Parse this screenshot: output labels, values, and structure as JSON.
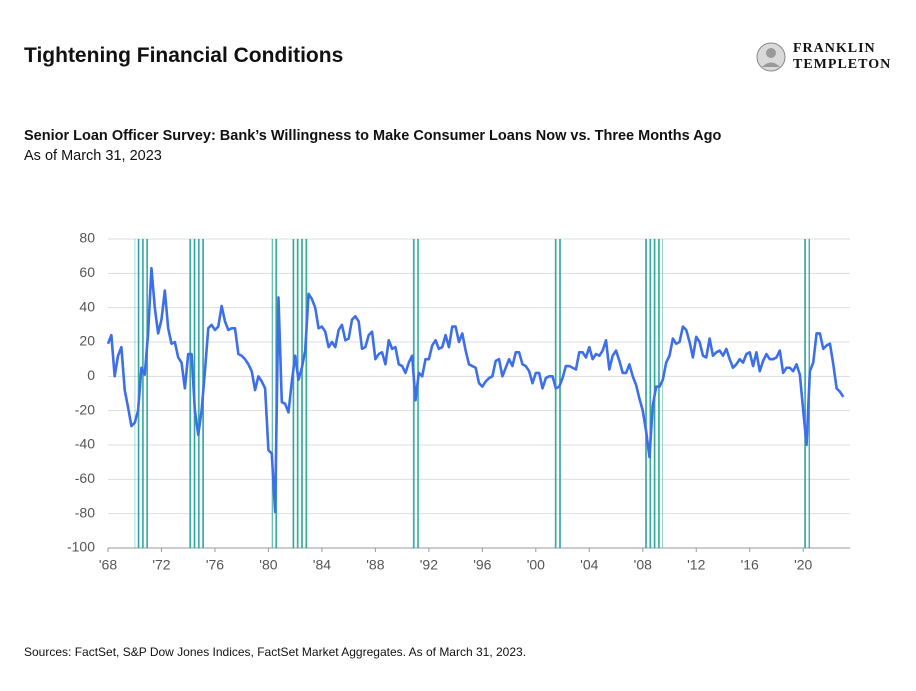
{
  "header": {
    "title": "Tightening Financial Conditions",
    "logo": [
      "FRANKLIN",
      "TEMPLETON"
    ]
  },
  "chart_data": {
    "type": "line",
    "title": "Senior Loan Officer Survey: Bank’s Willingness to Make Consumer Loans Now vs. Three Months Ago",
    "subtitle": "As of March 31, 2023",
    "source": "Sources: FactSet, S&P Dow Jones Indices, FactSet Market Aggregates. As of March 31, 2023.",
    "x": [
      1968,
      1968.25,
      1968.5,
      1968.75,
      1969,
      1969.25,
      1969.5,
      1969.75,
      1970,
      1970.25,
      1970.5,
      1970.75,
      1971,
      1971.25,
      1971.5,
      1971.75,
      1972,
      1972.25,
      1972.5,
      1972.75,
      1973,
      1973.25,
      1973.5,
      1973.75,
      1974,
      1974.25,
      1974.5,
      1974.75,
      1975,
      1975.25,
      1975.5,
      1975.75,
      1976,
      1976.25,
      1976.5,
      1976.75,
      1977,
      1977.25,
      1977.5,
      1977.75,
      1978,
      1978.25,
      1978.5,
      1978.75,
      1979,
      1979.25,
      1979.5,
      1979.75,
      1980,
      1980.25,
      1980.5,
      1980.75,
      1981,
      1981.25,
      1981.5,
      1981.75,
      1982,
      1982.25,
      1982.5,
      1982.75,
      1983,
      1983.25,
      1983.5,
      1983.75,
      1984,
      1984.25,
      1984.5,
      1984.75,
      1985,
      1985.25,
      1985.5,
      1985.75,
      1986,
      1986.25,
      1986.5,
      1986.75,
      1987,
      1987.25,
      1987.5,
      1987.75,
      1988,
      1988.25,
      1988.5,
      1988.75,
      1989,
      1989.25,
      1989.5,
      1989.75,
      1990,
      1990.25,
      1990.5,
      1990.75,
      1991,
      1991.25,
      1991.5,
      1991.75,
      1992,
      1992.25,
      1992.5,
      1992.75,
      1993,
      1993.25,
      1993.5,
      1993.75,
      1994,
      1994.25,
      1994.5,
      1994.75,
      1995,
      1995.25,
      1995.5,
      1995.75,
      1996,
      1996.25,
      1996.5,
      1996.75,
      1997,
      1997.25,
      1997.5,
      1997.75,
      1998,
      1998.25,
      1998.5,
      1998.75,
      1999,
      1999.25,
      1999.5,
      1999.75,
      2000,
      2000.25,
      2000.5,
      2000.75,
      2001,
      2001.25,
      2001.5,
      2001.75,
      2002,
      2002.25,
      2002.5,
      2002.75,
      2003,
      2003.25,
      2003.5,
      2003.75,
      2004,
      2004.25,
      2004.5,
      2004.75,
      2005,
      2005.25,
      2005.5,
      2005.75,
      2006,
      2006.25,
      2006.5,
      2006.75,
      2007,
      2007.25,
      2007.5,
      2007.75,
      2008,
      2008.25,
      2008.5,
      2008.75,
      2009,
      2009.25,
      2009.5,
      2009.75,
      2010,
      2010.25,
      2010.5,
      2010.75,
      2011,
      2011.25,
      2011.5,
      2011.75,
      2012,
      2012.25,
      2012.5,
      2012.75,
      2013,
      2013.25,
      2013.5,
      2013.75,
      2014,
      2014.25,
      2014.5,
      2014.75,
      2015,
      2015.25,
      2015.5,
      2015.75,
      2016,
      2016.25,
      2016.5,
      2016.75,
      2017,
      2017.25,
      2017.5,
      2017.75,
      2018,
      2018.25,
      2018.5,
      2018.75,
      2019,
      2019.25,
      2019.5,
      2019.75,
      2020,
      2020.25,
      2020.5,
      2020.75,
      2021,
      2021.25,
      2021.5,
      2021.75,
      2022,
      2022.25,
      2022.5,
      2022.75,
      2023
    ],
    "series": [
      {
        "color": "#3d6fea",
        "values": [
          19,
          24,
          0,
          12,
          17,
          -8,
          -18,
          -29,
          -27,
          -20,
          5,
          1,
          25,
          63,
          40,
          25,
          33,
          50,
          28,
          19,
          20,
          11,
          8,
          -7,
          13,
          13,
          -20,
          -34,
          -20,
          3,
          28,
          30,
          27,
          29,
          41,
          32,
          27,
          28,
          28,
          13,
          12,
          10,
          7,
          3,
          -8,
          0,
          -3,
          -7,
          -43,
          -45,
          -79,
          46,
          -15,
          -16,
          -21,
          -3,
          12,
          -2,
          5,
          15,
          48,
          45,
          40,
          28,
          29,
          26,
          17,
          20,
          17,
          27,
          30,
          21,
          22,
          33,
          35,
          32,
          16,
          17,
          24,
          26,
          10,
          13,
          14,
          7,
          21,
          16,
          17,
          7,
          6,
          2,
          8,
          12,
          -14,
          2,
          0,
          10,
          10,
          18,
          21,
          16,
          17,
          24,
          17,
          29,
          29,
          20,
          25,
          15,
          7,
          6,
          5,
          -4,
          -6,
          -3,
          -1,
          0,
          9,
          10,
          0,
          5,
          10,
          6,
          14,
          14,
          7,
          6,
          3,
          -4,
          2,
          2,
          -7,
          -1,
          0,
          0,
          -7,
          -6,
          -1,
          6,
          6,
          5,
          4,
          14,
          14,
          11,
          17,
          10,
          13,
          12,
          15,
          21,
          4,
          12,
          15,
          9,
          2,
          2,
          7,
          0,
          -5,
          -13,
          -20,
          -32,
          -47,
          -17,
          -6,
          -6,
          -2,
          8,
          12,
          22,
          19,
          20,
          29,
          27,
          20,
          11,
          23,
          20,
          12,
          11,
          22,
          12,
          14,
          15,
          12,
          16,
          10,
          5,
          7,
          10,
          8,
          13,
          14,
          6,
          14,
          3,
          9,
          13,
          10,
          10,
          11,
          15,
          2,
          5,
          5,
          3,
          7,
          1,
          -20,
          -40,
          3,
          8,
          25,
          25,
          16,
          18,
          19,
          7,
          -7,
          -9,
          -12
        ]
      }
    ],
    "recessions": [
      [
        1970,
        1971
      ],
      [
        1974,
        1975.25
      ],
      [
        1980.25,
        1980.75
      ],
      [
        1981.75,
        1983
      ],
      [
        1990.75,
        1991.25
      ],
      [
        2001.25,
        2002
      ],
      [
        2008,
        2009.5
      ],
      [
        2020,
        2020.5
      ]
    ],
    "recession_color": "#2aa39a",
    "xlim": [
      1968,
      2023.5
    ],
    "xticks": [
      {
        "value": 1968,
        "label": "'68"
      },
      {
        "value": 1972,
        "label": "'72"
      },
      {
        "value": 1976,
        "label": "'76"
      },
      {
        "value": 1980,
        "label": "'80"
      },
      {
        "value": 1984,
        "label": "'84"
      },
      {
        "value": 1988,
        "label": "'88"
      },
      {
        "value": 1992,
        "label": "'92"
      },
      {
        "value": 1996,
        "label": "'96"
      },
      {
        "value": 2000,
        "label": "'00"
      },
      {
        "value": 2004,
        "label": "'04"
      },
      {
        "value": 2008,
        "label": "'08"
      },
      {
        "value": 2012,
        "label": "'12"
      },
      {
        "value": 2016,
        "label": "'16"
      },
      {
        "value": 2020,
        "label": "'20"
      }
    ],
    "ylim": [
      -100,
      80
    ],
    "yticks": [
      -100,
      -80,
      -60,
      -40,
      -20,
      0,
      20,
      40,
      60,
      80
    ],
    "grid": true
  }
}
